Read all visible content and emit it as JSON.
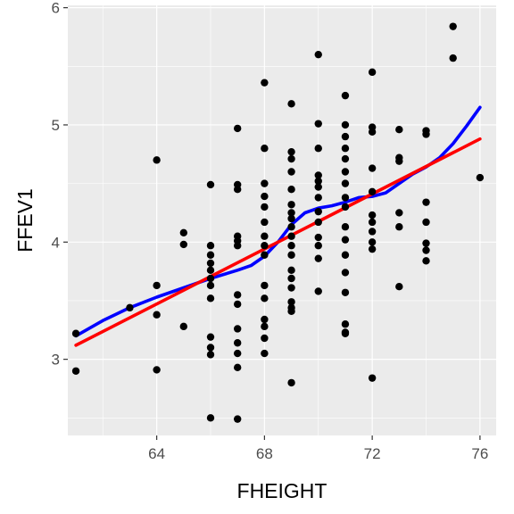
{
  "chart_data": {
    "type": "scatter",
    "xlabel": "FHEIGHT",
    "ylabel": "FFEV1",
    "xlim": [
      60.7,
      76.6
    ],
    "ylim": [
      2.35,
      6.02
    ],
    "x_ticks": [
      64,
      68,
      72,
      76
    ],
    "y_ticks": [
      3,
      4,
      5,
      6
    ],
    "x_tick_labels": [
      "64",
      "68",
      "72",
      "76"
    ],
    "y_tick_labels": [
      "3",
      "4",
      "5",
      "6"
    ],
    "grid": true,
    "panel_background": "#ebebeb",
    "points": [
      [
        61,
        3.22
      ],
      [
        61,
        2.9
      ],
      [
        63,
        3.44
      ],
      [
        64,
        4.7
      ],
      [
        64,
        3.63
      ],
      [
        64,
        3.38
      ],
      [
        64,
        2.91
      ],
      [
        65,
        4.08
      ],
      [
        65,
        3.98
      ],
      [
        65,
        3.28
      ],
      [
        66,
        4.49
      ],
      [
        66,
        3.97
      ],
      [
        66,
        3.89
      ],
      [
        66,
        3.82
      ],
      [
        66,
        3.76
      ],
      [
        66,
        3.69
      ],
      [
        66,
        3.63
      ],
      [
        66,
        3.52
      ],
      [
        66,
        3.19
      ],
      [
        66,
        3.1
      ],
      [
        66,
        3.04
      ],
      [
        66,
        2.5
      ],
      [
        67,
        4.97
      ],
      [
        67,
        4.49
      ],
      [
        67,
        4.45
      ],
      [
        67,
        4.05
      ],
      [
        67,
        4.01
      ],
      [
        67,
        3.97
      ],
      [
        67,
        3.55
      ],
      [
        67,
        3.47
      ],
      [
        67,
        3.26
      ],
      [
        67,
        3.14
      ],
      [
        67,
        3.05
      ],
      [
        67,
        2.93
      ],
      [
        67,
        2.49
      ],
      [
        68,
        5.36
      ],
      [
        68,
        4.8
      ],
      [
        68,
        4.5
      ],
      [
        68,
        4.39
      ],
      [
        68,
        4.3
      ],
      [
        68,
        4.17
      ],
      [
        68,
        4.05
      ],
      [
        68,
        3.97
      ],
      [
        68,
        3.89
      ],
      [
        68,
        3.63
      ],
      [
        68,
        3.52
      ],
      [
        68,
        3.34
      ],
      [
        68,
        3.28
      ],
      [
        68,
        3.18
      ],
      [
        68,
        3.05
      ],
      [
        69,
        5.18
      ],
      [
        69,
        4.77
      ],
      [
        69,
        4.71
      ],
      [
        69,
        4.6
      ],
      [
        69,
        4.45
      ],
      [
        69,
        4.32
      ],
      [
        69,
        4.25
      ],
      [
        69,
        4.2
      ],
      [
        69,
        4.13
      ],
      [
        69,
        4.05
      ],
      [
        69,
        3.97
      ],
      [
        69,
        3.89
      ],
      [
        69,
        3.76
      ],
      [
        69,
        3.69
      ],
      [
        69,
        3.61
      ],
      [
        69,
        3.49
      ],
      [
        69,
        3.44
      ],
      [
        69,
        3.41
      ],
      [
        69,
        2.8
      ],
      [
        70,
        5.6
      ],
      [
        70,
        5.01
      ],
      [
        70,
        4.8
      ],
      [
        70,
        4.57
      ],
      [
        70,
        4.52
      ],
      [
        70,
        4.47
      ],
      [
        70,
        4.38
      ],
      [
        70,
        4.26
      ],
      [
        70,
        4.17
      ],
      [
        70,
        4.04
      ],
      [
        70,
        3.97
      ],
      [
        70,
        3.86
      ],
      [
        70,
        3.58
      ],
      [
        71,
        5.25
      ],
      [
        71,
        5.0
      ],
      [
        71,
        4.9
      ],
      [
        71,
        4.8
      ],
      [
        71,
        4.71
      ],
      [
        71,
        4.6
      ],
      [
        71,
        4.5
      ],
      [
        71,
        4.38
      ],
      [
        71,
        4.3
      ],
      [
        71,
        4.13
      ],
      [
        71,
        4.02
      ],
      [
        71,
        3.89
      ],
      [
        71,
        3.74
      ],
      [
        71,
        3.57
      ],
      [
        71,
        3.3
      ],
      [
        71,
        3.23
      ],
      [
        71,
        3.22
      ],
      [
        72,
        5.45
      ],
      [
        72,
        4.98
      ],
      [
        72,
        4.94
      ],
      [
        72,
        4.63
      ],
      [
        72,
        4.43
      ],
      [
        72,
        4.23
      ],
      [
        72,
        4.17
      ],
      [
        72,
        4.09
      ],
      [
        72,
        4.0
      ],
      [
        72,
        3.94
      ],
      [
        72,
        2.84
      ],
      [
        73,
        4.96
      ],
      [
        73,
        4.72
      ],
      [
        73,
        4.69
      ],
      [
        73,
        4.25
      ],
      [
        73,
        4.13
      ],
      [
        73,
        3.62
      ],
      [
        74,
        4.95
      ],
      [
        74,
        4.92
      ],
      [
        74,
        4.34
      ],
      [
        74,
        4.17
      ],
      [
        74,
        3.99
      ],
      [
        74,
        3.93
      ],
      [
        74,
        3.84
      ],
      [
        75,
        5.84
      ],
      [
        75,
        5.57
      ],
      [
        76,
        4.55
      ]
    ],
    "series": [
      {
        "kind": "line",
        "color": "#0000ff",
        "values": [
          [
            61,
            3.2
          ],
          [
            62,
            3.33
          ],
          [
            63,
            3.44
          ],
          [
            64,
            3.53
          ],
          [
            65,
            3.61
          ],
          [
            66,
            3.69
          ],
          [
            67,
            3.76
          ],
          [
            67.5,
            3.8
          ],
          [
            68,
            3.88
          ],
          [
            68.5,
            4.0
          ],
          [
            69,
            4.15
          ],
          [
            69.5,
            4.25
          ],
          [
            70,
            4.29
          ],
          [
            70.5,
            4.31
          ],
          [
            71,
            4.34
          ],
          [
            71.5,
            4.38
          ],
          [
            72,
            4.39
          ],
          [
            72.5,
            4.42
          ],
          [
            73,
            4.5
          ],
          [
            73.5,
            4.58
          ],
          [
            74,
            4.64
          ],
          [
            74.5,
            4.72
          ],
          [
            75,
            4.84
          ],
          [
            75.5,
            4.99
          ],
          [
            76,
            5.15
          ]
        ]
      },
      {
        "kind": "line",
        "color": "#ff0000",
        "values": [
          [
            61,
            3.12
          ],
          [
            76,
            4.88
          ]
        ]
      }
    ]
  }
}
